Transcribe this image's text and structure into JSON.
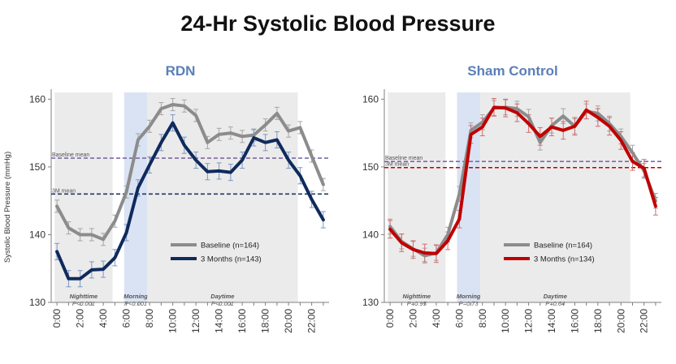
{
  "title": "24-Hr Systolic Blood Pressure",
  "chart_data": [
    {
      "type": "line",
      "title": "RDN",
      "ylabel": "Systolic Blood Pressure (mmHg)",
      "ylim": [
        130,
        161
      ],
      "yticks": [
        130,
        140,
        150,
        160
      ],
      "xlim": [
        -0.5,
        23.5
      ],
      "x": [
        0,
        1,
        2,
        3,
        4,
        5,
        6,
        7,
        8,
        9,
        10,
        11,
        12,
        13,
        14,
        15,
        16,
        17,
        18,
        19,
        20,
        21,
        22,
        23
      ],
      "xtick_labels": [
        "0:00",
        "2:00",
        "4:00",
        "6:00",
        "8:00",
        "10:00",
        "12:00",
        "14:00",
        "16:00",
        "18:00",
        "20:00",
        "22:00"
      ],
      "bands": [
        {
          "name": "Nighttime",
          "p": "P<0.001",
          "start": -0.2,
          "end": 4.8,
          "color": "#EBEBEB"
        },
        {
          "name": "Morning",
          "p": "P<0.001",
          "start": 5.8,
          "end": 7.8,
          "color": "#DAE3F3"
        },
        {
          "name": "Daytime",
          "p": "P<0.001",
          "start": 7.8,
          "end": 20.8,
          "color": "#EBEBEB"
        }
      ],
      "reference_lines": [
        {
          "label": "Baseline mean",
          "value": 151.3,
          "color": "#7E6BA3"
        },
        {
          "label": "3M mean",
          "value": 146.0,
          "color": "#1F3864"
        }
      ],
      "series": [
        {
          "name": "Baseline (n=164)",
          "color": "#8C8C8C",
          "error_color": "#A6A6A6",
          "values": [
            144.2,
            141.0,
            140.0,
            140.0,
            139.3,
            142.0,
            146.3,
            154.0,
            156.0,
            158.6,
            159.2,
            159.0,
            157.6,
            153.6,
            154.8,
            155.0,
            154.5,
            154.7,
            156.2,
            157.9,
            155.3,
            155.8,
            151.6,
            147.4
          ],
          "errors": [
            0.9,
            0.9,
            0.9,
            0.9,
            0.9,
            0.9,
            0.9,
            0.9,
            0.9,
            0.9,
            0.9,
            0.9,
            0.9,
            0.9,
            0.9,
            0.9,
            0.9,
            0.9,
            0.9,
            0.9,
            0.9,
            0.9,
            0.9,
            0.9
          ]
        },
        {
          "name": "3 Months (n=143)",
          "color": "#0F2A5C",
          "error_color": "#7C97C4",
          "values": [
            137.5,
            133.5,
            133.5,
            134.8,
            134.9,
            136.6,
            140.3,
            146.9,
            150.3,
            153.6,
            156.5,
            153.2,
            151.0,
            149.3,
            149.4,
            149.2,
            151.0,
            154.3,
            153.6,
            154.0,
            151.0,
            148.7,
            145.2,
            142.2
          ],
          "errors": [
            1.2,
            1.2,
            1.2,
            1.2,
            1.2,
            1.2,
            1.2,
            1.2,
            1.2,
            1.2,
            1.2,
            1.2,
            1.2,
            1.2,
            1.2,
            1.2,
            1.2,
            1.2,
            1.2,
            1.2,
            1.2,
            1.2,
            1.2,
            1.2
          ]
        }
      ]
    },
    {
      "type": "line",
      "title": "Sham Control",
      "ylabel": "",
      "ylim": [
        130,
        161
      ],
      "yticks": [
        130,
        140,
        150,
        160
      ],
      "xlim": [
        -0.5,
        23.5
      ],
      "x": [
        0,
        1,
        2,
        3,
        4,
        5,
        6,
        7,
        8,
        9,
        10,
        11,
        12,
        13,
        14,
        15,
        16,
        17,
        18,
        19,
        20,
        21,
        22,
        23
      ],
      "xtick_labels": [
        "0:00",
        "2:00",
        "4:00",
        "6:00",
        "8:00",
        "10:00",
        "12:00",
        "14:00",
        "16:00",
        "18:00",
        "20:00",
        "22:00"
      ],
      "bands": [
        {
          "name": "Nighttime",
          "p": "P=0.95",
          "start": -0.2,
          "end": 4.8,
          "color": "#EBEBEB"
        },
        {
          "name": "Morning",
          "p": "P=0.73",
          "start": 5.8,
          "end": 7.8,
          "color": "#DAE3F3"
        },
        {
          "name": "Daytime",
          "p": "P=0.64",
          "start": 7.8,
          "end": 20.8,
          "color": "#EBEBEB"
        }
      ],
      "reference_lines": [
        {
          "label": "Baseline mean",
          "value": 150.8,
          "color": "#7E6BA3"
        },
        {
          "label": "3M mean",
          "value": 149.9,
          "color": "#C00000"
        }
      ],
      "series": [
        {
          "name": "Baseline (n=164)",
          "color": "#8C8C8C",
          "error_color": "#A6A6A6",
          "values": [
            141.2,
            139.0,
            137.9,
            136.9,
            137.3,
            140.0,
            146.0,
            155.4,
            156.6,
            158.7,
            158.8,
            158.6,
            157.4,
            153.6,
            156.1,
            157.5,
            156.0,
            158.2,
            157.9,
            156.4,
            154.5,
            152.1,
            149.4,
            145.0
          ],
          "errors": [
            1.1,
            1.1,
            1.1,
            1.1,
            1.1,
            1.1,
            1.1,
            1.1,
            1.1,
            1.1,
            1.1,
            1.1,
            1.1,
            1.1,
            1.1,
            1.1,
            1.1,
            1.1,
            1.1,
            1.1,
            1.1,
            1.1,
            1.1,
            1.1
          ]
        },
        {
          "name": "3 Months (n=134)",
          "color": "#C00000",
          "error_color": "#D46A6A",
          "values": [
            140.8,
            138.8,
            137.8,
            137.3,
            137.2,
            139.1,
            142.3,
            154.8,
            155.9,
            158.8,
            158.7,
            158.0,
            156.4,
            154.5,
            155.9,
            155.4,
            156.0,
            158.4,
            157.3,
            156.0,
            153.9,
            150.8,
            149.8,
            144.2
          ],
          "errors": [
            1.3,
            1.3,
            1.3,
            1.3,
            1.3,
            1.3,
            1.3,
            1.3,
            1.3,
            1.3,
            1.3,
            1.3,
            1.3,
            1.3,
            1.3,
            1.3,
            1.3,
            1.3,
            1.3,
            1.3,
            1.3,
            1.3,
            1.3,
            1.3
          ]
        }
      ]
    }
  ]
}
